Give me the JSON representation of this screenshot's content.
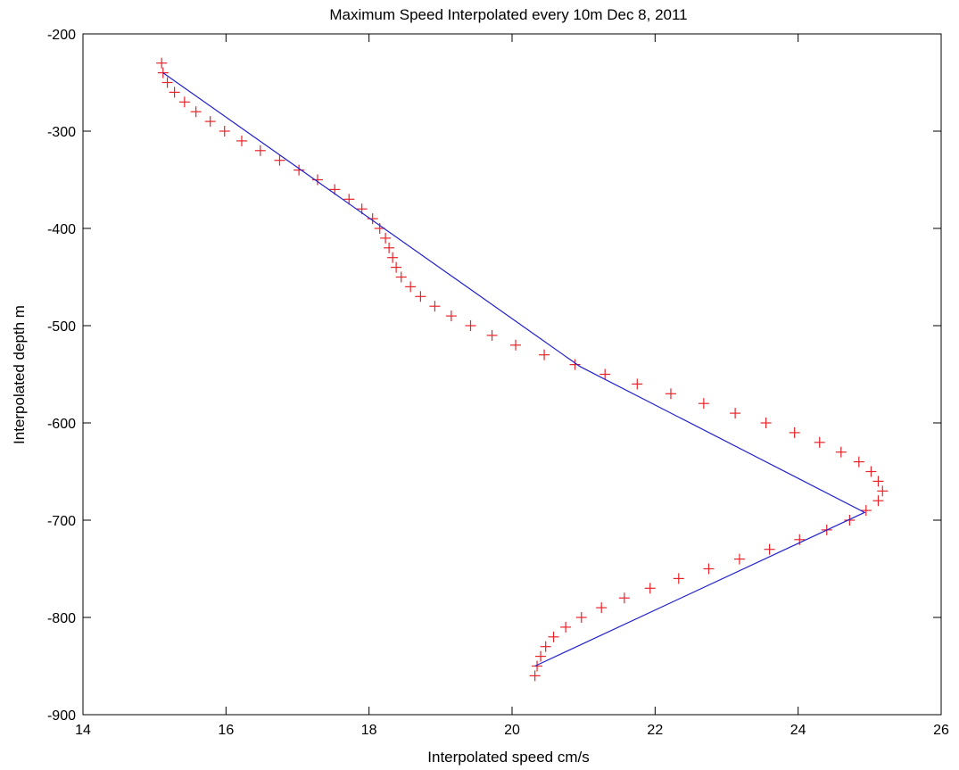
{
  "chart_data": {
    "type": "scatter",
    "title": "Maximum Speed Interpolated every 10m Dec 8, 2011",
    "xlabel": "Interpolated speed cm/s",
    "ylabel": "Interpolated depth m",
    "xlim": [
      14,
      26
    ],
    "ylim": [
      -900,
      -200
    ],
    "xticks": [
      "14",
      "16",
      "18",
      "20",
      "22",
      "24",
      "26"
    ],
    "yticks": [
      "-200",
      "-300",
      "-400",
      "-500",
      "-600",
      "-700",
      "-800",
      "-900"
    ],
    "grid": false,
    "series": [
      {
        "marker": "plus",
        "color": "#e8242a",
        "points": [
          [
            15.1,
            -230
          ],
          [
            15.12,
            -240
          ],
          [
            15.18,
            -250
          ],
          [
            15.28,
            -260
          ],
          [
            15.42,
            -270
          ],
          [
            15.58,
            -280
          ],
          [
            15.78,
            -290
          ],
          [
            15.98,
            -300
          ],
          [
            16.22,
            -310
          ],
          [
            16.48,
            -320
          ],
          [
            16.75,
            -330
          ],
          [
            17.02,
            -340
          ],
          [
            17.28,
            -350
          ],
          [
            17.52,
            -360
          ],
          [
            17.72,
            -370
          ],
          [
            17.9,
            -380
          ],
          [
            18.05,
            -390
          ],
          [
            18.15,
            -400
          ],
          [
            18.23,
            -410
          ],
          [
            18.28,
            -420
          ],
          [
            18.33,
            -430
          ],
          [
            18.38,
            -440
          ],
          [
            18.45,
            -450
          ],
          [
            18.58,
            -460
          ],
          [
            18.72,
            -470
          ],
          [
            18.92,
            -480
          ],
          [
            19.15,
            -490
          ],
          [
            19.42,
            -500
          ],
          [
            19.72,
            -510
          ],
          [
            20.05,
            -520
          ],
          [
            20.45,
            -530
          ],
          [
            20.88,
            -540
          ],
          [
            21.3,
            -550
          ],
          [
            21.75,
            -560
          ],
          [
            22.22,
            -570
          ],
          [
            22.68,
            -580
          ],
          [
            23.12,
            -590
          ],
          [
            23.55,
            -600
          ],
          [
            23.95,
            -610
          ],
          [
            24.3,
            -620
          ],
          [
            24.6,
            -630
          ],
          [
            24.85,
            -640
          ],
          [
            25.02,
            -650
          ],
          [
            25.12,
            -660
          ],
          [
            25.18,
            -670
          ],
          [
            25.12,
            -680
          ],
          [
            24.95,
            -690
          ],
          [
            24.72,
            -700
          ],
          [
            24.4,
            -710
          ],
          [
            24.02,
            -720
          ],
          [
            23.6,
            -730
          ],
          [
            23.18,
            -740
          ],
          [
            22.75,
            -750
          ],
          [
            22.33,
            -760
          ],
          [
            21.93,
            -770
          ],
          [
            21.57,
            -780
          ],
          [
            21.25,
            -790
          ],
          [
            20.97,
            -800
          ],
          [
            20.75,
            -810
          ],
          [
            20.58,
            -820
          ],
          [
            20.47,
            -830
          ],
          [
            20.4,
            -840
          ],
          [
            20.35,
            -850
          ],
          [
            20.32,
            -860
          ]
        ]
      },
      {
        "marker": "line",
        "color": "#2222cc",
        "points": [
          [
            15.12,
            -240
          ],
          [
            20.95,
            -542
          ],
          [
            24.93,
            -692
          ],
          [
            20.32,
            -850
          ]
        ]
      }
    ]
  }
}
